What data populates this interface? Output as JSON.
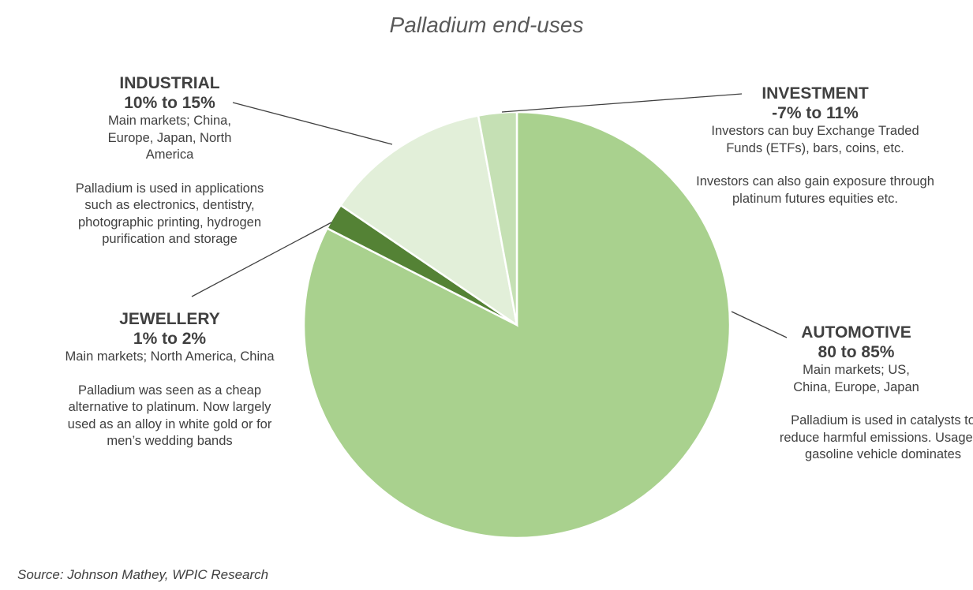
{
  "chart_data": {
    "type": "pie",
    "title": "Palladium end-uses",
    "start_angle_deg": 0,
    "direction": "clockwise",
    "slices": [
      {
        "name": "AUTOMOTIVE",
        "range": "80 to 85%",
        "value": 82.5,
        "color": "#a9d18e",
        "markets": "Main markets; US, China, Europe, Japan",
        "note": "Palladium is used in catalysts to reduce harmful emissions. Usage in gasoline vehicle dominates"
      },
      {
        "name": "JEWELLERY",
        "range": "1% to 2%",
        "value": 2.0,
        "color": "#548235",
        "markets": "Main markets; North America, China",
        "note": "Palladium was seen as a cheap alternative to platinum. Now largely used as an alloy in white gold or for men’s wedding bands"
      },
      {
        "name": "INDUSTRIAL",
        "range": "10% to 15%",
        "value": 12.6,
        "color": "#e2efd9",
        "markets": "Main markets; China, Europe, Japan, North America",
        "note": "Palladium is used in applications such as electronics, dentistry, photographic printing, hydrogen purification and storage"
      },
      {
        "name": "INVESTMENT",
        "range": "-7% to 11%",
        "value": 2.9,
        "color": "#c5e0b4",
        "markets": "Investors can buy Exchange Traded Funds (ETFs), bars, coins, etc.",
        "note": "Investors can also gain exposure through platinum futures equities etc."
      }
    ],
    "source": "Source: Johnson Mathey, WPIC Research"
  }
}
